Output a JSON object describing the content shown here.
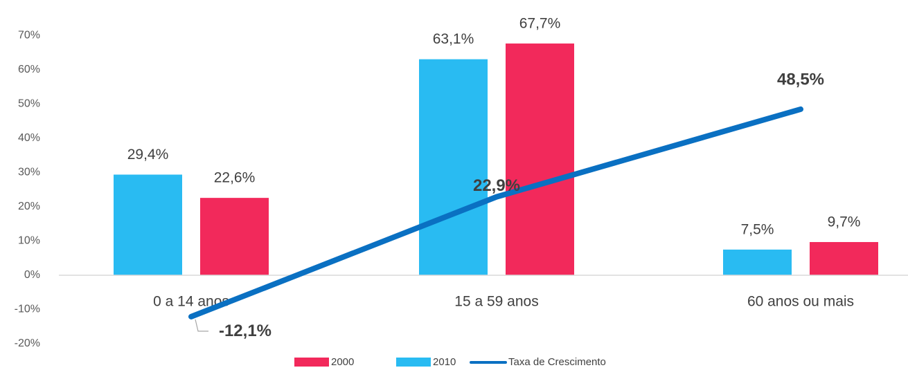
{
  "chart_data": {
    "type": "bar",
    "categories": [
      "0 a 14 anos",
      "15 a 59 anos",
      "60 anos ou mais"
    ],
    "series": [
      {
        "name": "2010",
        "values": [
          29.4,
          63.1,
          7.5
        ],
        "color": "#29BBF2",
        "label_text": [
          "29,4%",
          "63,1%",
          "7,5%"
        ]
      },
      {
        "name": "2000",
        "values": [
          22.6,
          67.7,
          9.7
        ],
        "color": "#F2295B",
        "label_text": [
          "22,6%",
          "67,7%",
          "9,7%"
        ]
      }
    ],
    "line_series": {
      "name": "Taxa de Crescimento",
      "values": [
        -12.1,
        22.9,
        48.5
      ],
      "color": "#0A70C2",
      "label_text": [
        "-12,1%",
        "22,9%",
        "48,5%"
      ]
    },
    "ylim": [
      -20,
      70
    ],
    "yticks": [
      -20,
      -10,
      0,
      10,
      20,
      30,
      40,
      50,
      60,
      70
    ],
    "ytick_labels": [
      "-20%",
      "-10%",
      "0%",
      "10%",
      "20%",
      "30%",
      "40%",
      "50%",
      "60%",
      "70%"
    ],
    "legend": {
      "placement": "bottom",
      "entries": [
        {
          "name": "2000",
          "type": "bar",
          "color": "#F2295B"
        },
        {
          "name": "2010",
          "type": "bar",
          "color": "#29BBF2"
        },
        {
          "name": "Taxa de Crescimento",
          "type": "line",
          "color": "#0A70C2"
        }
      ]
    },
    "grid": false,
    "title": "",
    "xlabel": "",
    "ylabel": ""
  }
}
